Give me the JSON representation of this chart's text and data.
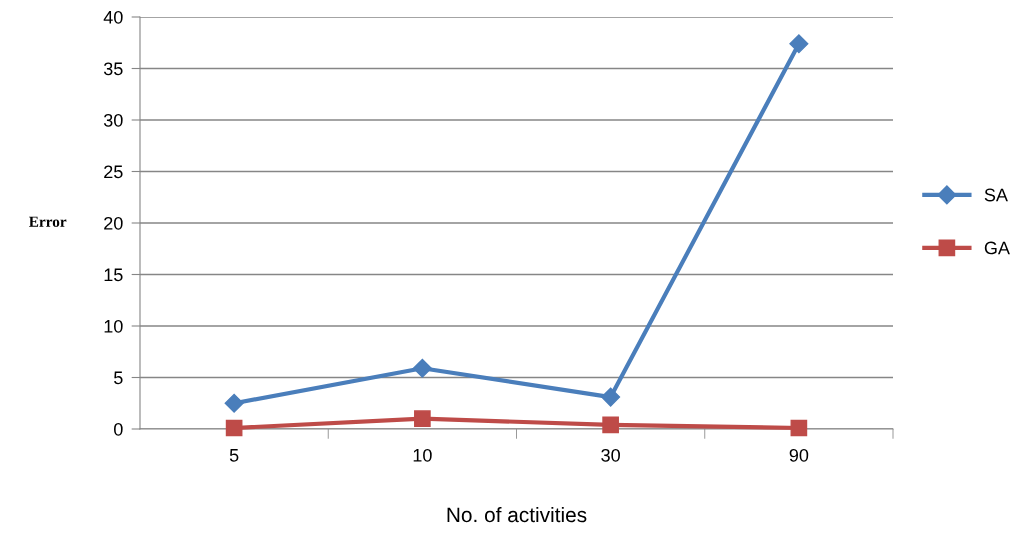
{
  "chart_data": {
    "type": "line",
    "xlabel": "No. of activities",
    "ylabel": "Error",
    "categories": [
      "5",
      "10",
      "30",
      "90"
    ],
    "series": [
      {
        "name": "SA",
        "color": "#4a7ebb",
        "values": [
          2.5,
          5.9,
          3.1,
          37.4
        ],
        "marker": "diamond"
      },
      {
        "name": "GA",
        "color": "#be4b48",
        "values": [
          0.1,
          1.0,
          0.4,
          0.1
        ],
        "marker": "square"
      }
    ],
    "ylim": [
      0,
      40
    ],
    "yticks": [
      0,
      5,
      10,
      15,
      20,
      25,
      30,
      35,
      40
    ],
    "grid": "y",
    "legend": "right"
  }
}
